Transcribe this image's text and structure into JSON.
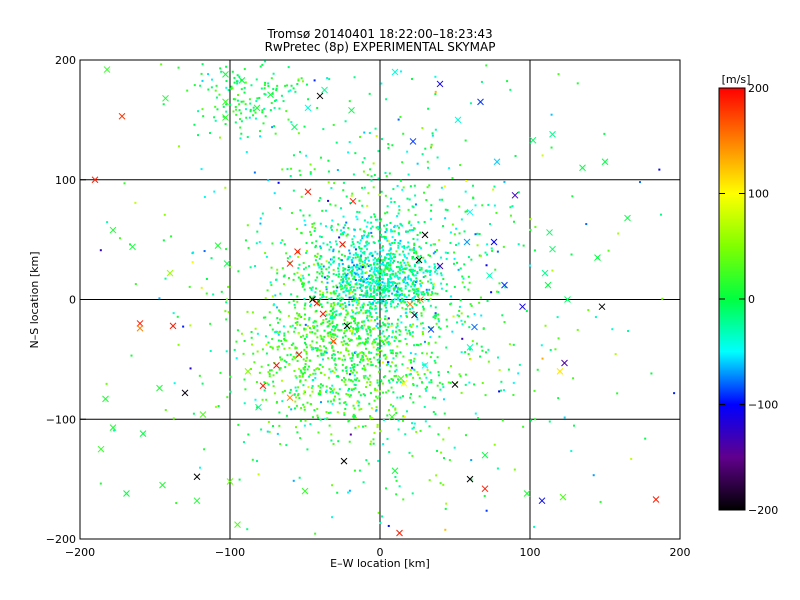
{
  "chart_data": {
    "type": "scatter",
    "title": "Tromsø 20140401 18:22:00–18:23:43",
    "subtitle": "RwPretec (8p) EXPERIMENTAL SKYMAP",
    "xlabel": "E–W location [km]",
    "ylabel": "N–S location [km]",
    "xlim": [
      -200,
      200
    ],
    "ylim": [
      -200,
      200
    ],
    "xticks": [
      -200,
      -100,
      0,
      100,
      200
    ],
    "yticks": [
      -200,
      -100,
      0,
      100,
      200
    ],
    "xtick_labels": [
      "−200",
      "−100",
      "0",
      "100",
      "200"
    ],
    "ytick_labels": [
      "−200",
      "−100",
      "0",
      "100",
      "200"
    ],
    "grid": true,
    "colorbar": {
      "label": "[m/s]",
      "min": -200,
      "max": 200,
      "ticks": [
        200,
        100,
        0,
        -100,
        -200
      ],
      "tick_labels": [
        "200",
        "100",
        "0",
        "−100",
        "−200"
      ]
    },
    "marker_types": [
      "dot",
      "cross"
    ],
    "clusters": [
      {
        "cx": 0,
        "cy": 20,
        "sx": 18,
        "sy": 20,
        "n": 700,
        "v_mean": -35,
        "v_sd": 20
      },
      {
        "cx": -30,
        "cy": -40,
        "sx": 30,
        "sy": 35,
        "n": 700,
        "v_mean": 25,
        "v_sd": 20
      },
      {
        "cx": 0,
        "cy": 0,
        "sx": 40,
        "sy": 70,
        "n": 900,
        "v_mean": -5,
        "v_sd": 25
      },
      {
        "cx": -90,
        "cy": 170,
        "sx": 20,
        "sy": 15,
        "n": 150,
        "v_mean": 0,
        "v_sd": 20
      },
      {
        "cx": 0,
        "cy": 0,
        "sx": 90,
        "sy": 100,
        "n": 400,
        "v_mean": 0,
        "v_sd": 50
      }
    ],
    "crosses": [
      {
        "x": -143,
        "y": 168,
        "v": 10
      },
      {
        "x": -103,
        "y": 152,
        "v": 15
      },
      {
        "x": -103,
        "y": 165,
        "v": 20
      },
      {
        "x": -103,
        "y": 188,
        "v": 5
      },
      {
        "x": -92,
        "y": 183,
        "v": 0
      },
      {
        "x": -82,
        "y": 160,
        "v": 10
      },
      {
        "x": -73,
        "y": 171,
        "v": 5
      },
      {
        "x": -48,
        "y": 160,
        "v": -40
      },
      {
        "x": -37,
        "y": 175,
        "v": -20
      },
      {
        "x": -40,
        "y": 170,
        "v": -200
      },
      {
        "x": -57,
        "y": 144,
        "v": -10
      },
      {
        "x": -19,
        "y": 158,
        "v": 0
      },
      {
        "x": -172,
        "y": 153,
        "v": 180
      },
      {
        "x": -190,
        "y": 100,
        "v": 190
      },
      {
        "x": -182,
        "y": 192,
        "v": 20
      },
      {
        "x": 67,
        "y": 165,
        "v": -90
      },
      {
        "x": 52,
        "y": 150,
        "v": -40
      },
      {
        "x": 78,
        "y": 115,
        "v": -60
      },
      {
        "x": 115,
        "y": 138,
        "v": -20
      },
      {
        "x": 40,
        "y": 180,
        "v": -110
      },
      {
        "x": 22,
        "y": 132,
        "v": -90
      },
      {
        "x": 90,
        "y": 87,
        "v": -130
      },
      {
        "x": 60,
        "y": 73,
        "v": -50
      },
      {
        "x": 30,
        "y": 54,
        "v": -200
      },
      {
        "x": 58,
        "y": 48,
        "v": -70
      },
      {
        "x": 76,
        "y": 48,
        "v": -100
      },
      {
        "x": 115,
        "y": 42,
        "v": -10
      },
      {
        "x": 110,
        "y": 22,
        "v": -20
      },
      {
        "x": 112,
        "y": 12,
        "v": 0
      },
      {
        "x": 83,
        "y": 12,
        "v": -90
      },
      {
        "x": 40,
        "y": 28,
        "v": -140
      },
      {
        "x": 73,
        "y": 20,
        "v": -30
      },
      {
        "x": 95,
        "y": -6,
        "v": -110
      },
      {
        "x": 125,
        "y": 0,
        "v": -10
      },
      {
        "x": 148,
        "y": -6,
        "v": -200
      },
      {
        "x": 120,
        "y": -60,
        "v": 110
      },
      {
        "x": 123,
        "y": -53,
        "v": -140
      },
      {
        "x": 63,
        "y": -23,
        "v": -80
      },
      {
        "x": 50,
        "y": -71,
        "v": -200
      },
      {
        "x": 30,
        "y": -55,
        "v": -50
      },
      {
        "x": 14,
        "y": -66,
        "v": 30
      },
      {
        "x": 16,
        "y": -70,
        "v": 100
      },
      {
        "x": 8,
        "y": -98,
        "v": 20
      },
      {
        "x": 60,
        "y": -40,
        "v": -30
      },
      {
        "x": 23,
        "y": -13,
        "v": -180
      },
      {
        "x": 34,
        "y": -25,
        "v": -90
      },
      {
        "x": -22,
        "y": -22,
        "v": -200
      },
      {
        "x": -31,
        "y": -35,
        "v": 170
      },
      {
        "x": -54,
        "y": -46,
        "v": 190
      },
      {
        "x": -69,
        "y": -55,
        "v": 195
      },
      {
        "x": -88,
        "y": -60,
        "v": 50
      },
      {
        "x": -78,
        "y": -72,
        "v": 190
      },
      {
        "x": -60,
        "y": -82,
        "v": 150
      },
      {
        "x": -81,
        "y": -90,
        "v": -20
      },
      {
        "x": -130,
        "y": -78,
        "v": -195
      },
      {
        "x": -118,
        "y": -96,
        "v": 30
      },
      {
        "x": -147,
        "y": -74,
        "v": 10
      },
      {
        "x": -183,
        "y": -83,
        "v": 10
      },
      {
        "x": -178,
        "y": -107,
        "v": 10
      },
      {
        "x": -158,
        "y": -112,
        "v": 0
      },
      {
        "x": -186,
        "y": -125,
        "v": 20
      },
      {
        "x": -122,
        "y": -148,
        "v": -200
      },
      {
        "x": -100,
        "y": -152,
        "v": 40
      },
      {
        "x": -122,
        "y": -168,
        "v": 10
      },
      {
        "x": -145,
        "y": -155,
        "v": 10
      },
      {
        "x": -169,
        "y": -162,
        "v": 0
      },
      {
        "x": -95,
        "y": -188,
        "v": 30
      },
      {
        "x": -50,
        "y": -160,
        "v": 20
      },
      {
        "x": -24,
        "y": -135,
        "v": -200
      },
      {
        "x": 10,
        "y": -143,
        "v": 5
      },
      {
        "x": 60,
        "y": -150,
        "v": -200
      },
      {
        "x": 70,
        "y": -158,
        "v": 190
      },
      {
        "x": 98,
        "y": -162,
        "v": 10
      },
      {
        "x": 108,
        "y": -168,
        "v": -100
      },
      {
        "x": 122,
        "y": -165,
        "v": 30
      },
      {
        "x": 13,
        "y": -195,
        "v": 190
      },
      {
        "x": 70,
        "y": -130,
        "v": 0
      },
      {
        "x": -160,
        "y": -20,
        "v": 190
      },
      {
        "x": -138,
        "y": -22,
        "v": 190
      },
      {
        "x": -160,
        "y": -24,
        "v": 150
      },
      {
        "x": -140,
        "y": 22,
        "v": 60
      },
      {
        "x": -178,
        "y": 58,
        "v": 10
      },
      {
        "x": -108,
        "y": 45,
        "v": 10
      },
      {
        "x": -165,
        "y": 44,
        "v": 5
      },
      {
        "x": -102,
        "y": 30,
        "v": 0
      },
      {
        "x": -55,
        "y": 40,
        "v": 190
      },
      {
        "x": -60,
        "y": 30,
        "v": 190
      },
      {
        "x": -25,
        "y": 46,
        "v": 195
      },
      {
        "x": -48,
        "y": 90,
        "v": 190
      },
      {
        "x": -18,
        "y": 82,
        "v": 190
      },
      {
        "x": 26,
        "y": 33,
        "v": -200
      },
      {
        "x": 27,
        "y": 0,
        "v": 150
      },
      {
        "x": 20,
        "y": -4,
        "v": 150
      },
      {
        "x": -38,
        "y": -12,
        "v": 190
      },
      {
        "x": -42,
        "y": -3,
        "v": 190
      },
      {
        "x": -45,
        "y": 0,
        "v": -200
      },
      {
        "x": 165,
        "y": 68,
        "v": 0
      },
      {
        "x": 145,
        "y": 35,
        "v": 0
      },
      {
        "x": 113,
        "y": 56,
        "v": -10
      },
      {
        "x": 150,
        "y": 115,
        "v": 0
      },
      {
        "x": 184,
        "y": -167,
        "v": 190
      },
      {
        "x": 10,
        "y": 190,
        "v": -40
      },
      {
        "x": 102,
        "y": 133,
        "v": -10
      },
      {
        "x": 135,
        "y": 110,
        "v": 0
      }
    ]
  }
}
